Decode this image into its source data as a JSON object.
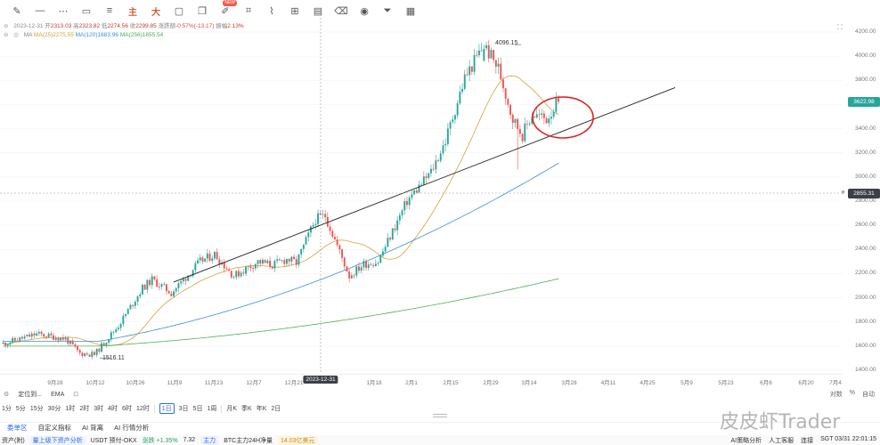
{
  "toolbar": {
    "icons": [
      "pen-icon",
      "horizontal-line-icon",
      "dotted-line-icon",
      "rectangle-icon",
      "lines-icon",
      "zhu-icon",
      "da-icon",
      "square-icon",
      "clone-icon",
      "ai-icon",
      "crop-icon",
      "brush-icon",
      "measure-icon",
      "note-icon",
      "trash-icon",
      "eye-icon",
      "filter-icon",
      "calendar-icon"
    ],
    "zhu_label": "主",
    "da_label": "大",
    "badge": "NEW"
  },
  "legend": {
    "date": "2023-12-31",
    "open_label": "开",
    "open": "2313.03",
    "high_label": "高",
    "high": "2323.82",
    "low_label": "低",
    "low": "2274.56",
    "close_label": "收",
    "close": "2299.85",
    "change_label": "涨跌额",
    "change": "-0.57%(-13.17)",
    "amplitude_label": "振幅",
    "amplitude": "2.13%",
    "ma_label": "MA",
    "ma25": "MA(25)2275.55",
    "ma120": "MA(120)1683.96",
    "ma256": "MA(256)1855.54"
  },
  "price_axis": {
    "ticks": [
      "4200.00",
      "4000.00",
      "3800.00",
      "3600.00",
      "3400.00",
      "3200.00",
      "3000.00",
      "2800.00",
      "2600.00",
      "2400.00",
      "2200.00",
      "2000.00",
      "1800.00",
      "1600.00",
      "1400.00"
    ],
    "last_price": "3622.98",
    "crosshair_price": "2855.31"
  },
  "time_axis": {
    "ticks": [
      "9月28",
      "10月12",
      "10月26",
      "11月9",
      "11月23",
      "12月7",
      "12月21",
      "1月18",
      "2月1",
      "2月15",
      "2月29",
      "3月14",
      "3月28",
      "4月11",
      "4月25",
      "5月9",
      "5月23",
      "6月6",
      "6月20",
      "7月4"
    ],
    "highlight": "2023-12-31"
  },
  "annotations": {
    "high_label": "4096.15",
    "low_label": "1516.11"
  },
  "colors": {
    "up": "#26a69a",
    "down": "#ef5350",
    "ma25": "#d4a23b",
    "ma120": "#3a8fd6",
    "ma256": "#4caf50",
    "trendline": "#222222",
    "circle": "#e02020",
    "last_price_tag": "#26a69a",
    "crosshair_tag": "#3b3f48"
  },
  "chart_data": {
    "type": "candlestick",
    "title": "",
    "ylim": [
      1400,
      4200
    ],
    "price_start": 1620,
    "events": [
      [
        0,
        1620
      ],
      [
        14,
        1700
      ],
      [
        26,
        1660
      ],
      [
        32,
        1540
      ],
      [
        38,
        1530
      ],
      [
        48,
        1770
      ],
      [
        58,
        2080
      ],
      [
        62,
        2150
      ],
      [
        70,
        2040
      ],
      [
        82,
        2300
      ],
      [
        88,
        2360
      ],
      [
        96,
        2180
      ],
      [
        106,
        2300
      ],
      [
        112,
        2270
      ],
      [
        118,
        2320
      ],
      [
        122,
        2290
      ],
      [
        130,
        2650
      ],
      [
        134,
        2680
      ],
      [
        144,
        2180
      ],
      [
        150,
        2280
      ],
      [
        156,
        2300
      ],
      [
        168,
        2800
      ],
      [
        178,
        3040
      ],
      [
        184,
        3300
      ],
      [
        192,
        3820
      ],
      [
        200,
        4090
      ],
      [
        206,
        3900
      ],
      [
        212,
        3480
      ],
      [
        216,
        3350
      ],
      [
        220,
        3520
      ],
      [
        226,
        3480
      ],
      [
        230,
        3600
      ]
    ],
    "high": 4096.15,
    "low": 1516.11,
    "last": 3622.98
  },
  "bottom": {
    "settings_left": "定位到...",
    "ema": "EMA",
    "compare_right": [
      "对数",
      "%",
      "自动"
    ],
    "intervals": [
      "1分",
      "5分",
      "15分",
      "30分",
      "1时",
      "2时",
      "3时",
      "4时",
      "6时",
      "12时",
      "1日",
      "3日",
      "5日",
      "1周",
      "月K",
      "季K",
      "年K",
      "2日"
    ],
    "active_interval": "1日",
    "tabs": [
      "委单区",
      "自定义指标",
      "AI 背离",
      "AI 行情分析"
    ],
    "active_tab": "委单区",
    "status": {
      "left_tag": "资产(附)",
      "chip1": "量上级下资产分析",
      "pair": "USDT 预付-OKX",
      "pct": "涨跌 +1.35%",
      "pct_val": "7.32",
      "chip2": "主力",
      "btc": "BTC主力24H净量",
      "btc_val": "14.03亿美元",
      "ai_btn": "AI策略分析",
      "people": "人工客服",
      "conn": "连接",
      "clock": "SGT 03/31 22:01:15"
    }
  },
  "watermark": "皮皮虾Trader"
}
